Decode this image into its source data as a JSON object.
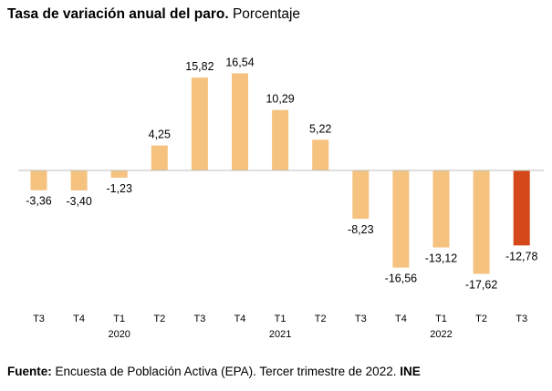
{
  "title": {
    "bold": "Tasa de variación anual del paro.",
    "normal": "Porcentaje"
  },
  "source": {
    "label": "Fuente:",
    "text": "Encuesta de Población Activa (EPA). Tercer trimestre de 2022.",
    "org": "INE"
  },
  "chart_data": {
    "type": "bar",
    "categories": [
      "T3",
      "T4",
      "T1",
      "T2",
      "T3",
      "T4",
      "T1",
      "T2",
      "T3",
      "T4",
      "T1",
      "T2",
      "T3"
    ],
    "year_labels": [
      "",
      "",
      "2020",
      "",
      "",
      "",
      "2021",
      "",
      "",
      "",
      "2022",
      "",
      ""
    ],
    "values": [
      -3.36,
      -3.4,
      -1.23,
      4.25,
      15.82,
      16.54,
      10.29,
      5.22,
      -8.23,
      -16.56,
      -13.12,
      -17.62,
      -12.78
    ],
    "value_labels": [
      "-3,36",
      "-3,40",
      "-1,23",
      "4,25",
      "15,82",
      "16,54",
      "10,29",
      "5,22",
      "-8,23",
      "-16,56",
      "-13,12",
      "-17,62",
      "-12,78"
    ],
    "colors": {
      "bar": "#F5C27F",
      "highlight": "#D5481A",
      "axis": "#BFBFBF"
    },
    "highlight_index": 12
  }
}
